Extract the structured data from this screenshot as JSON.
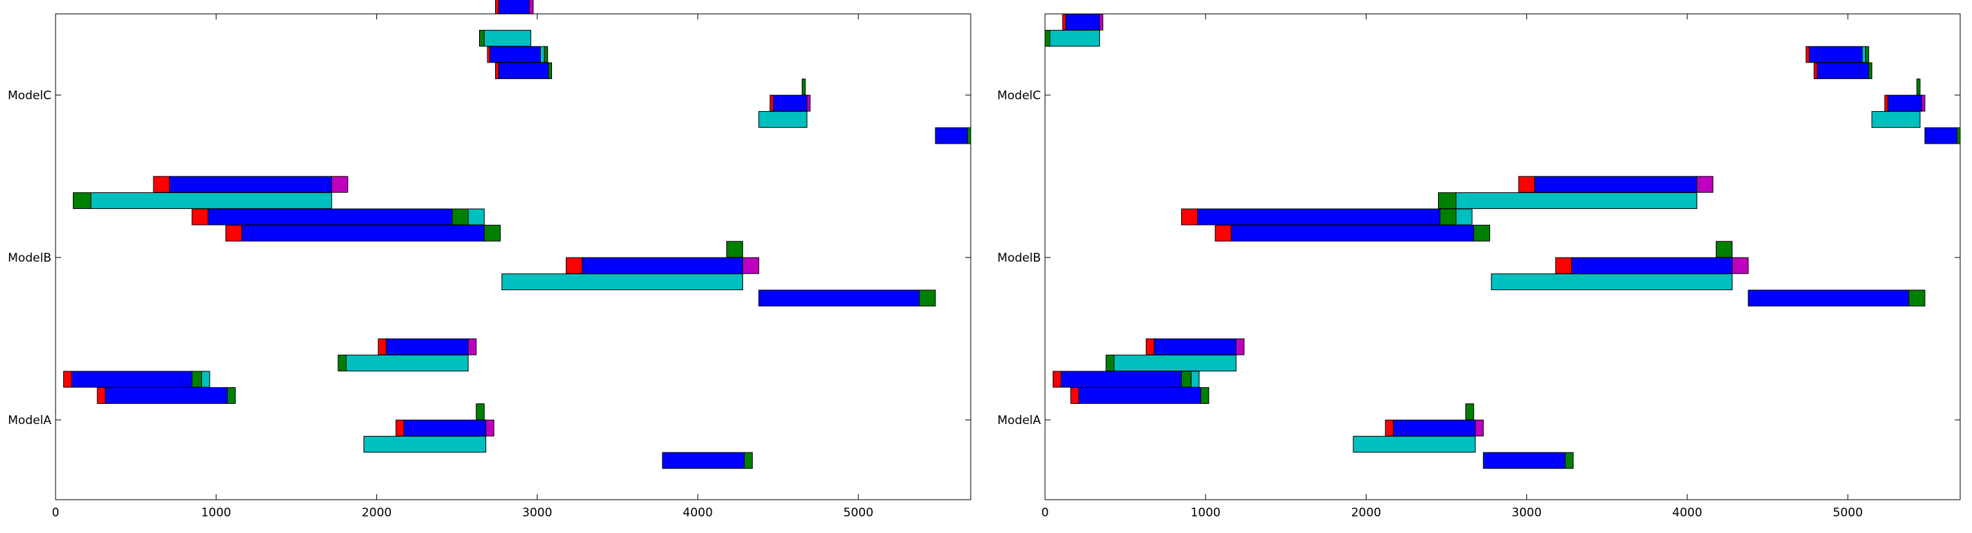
{
  "colors": {
    "red": "#ff0000",
    "blue": "#0000ff",
    "cyan": "#00bfbf",
    "green": "#008000",
    "magenta": "#bf00bf"
  },
  "chart_data": [
    {
      "type": "bar",
      "orientation": "horizontal-timeline",
      "title": "",
      "xlabel": "",
      "ylabel": "",
      "xlim": [
        0,
        5700
      ],
      "xticks": [
        "0",
        "1000",
        "2000",
        "3000",
        "4000",
        "5000"
      ],
      "categories": [
        "ModelA",
        "ModelB",
        "ModelC"
      ],
      "grid": false,
      "legend": "none",
      "bars": [
        {
          "y": 2.55,
          "start": 2740,
          "end": 2760,
          "color": "red"
        },
        {
          "y": 2.55,
          "start": 2760,
          "end": 2950,
          "color": "blue"
        },
        {
          "y": 2.55,
          "start": 2950,
          "end": 2975,
          "color": "magenta"
        },
        {
          "y": 2.35,
          "start": 2640,
          "end": 2670,
          "color": "green"
        },
        {
          "y": 2.35,
          "start": 2670,
          "end": 2960,
          "color": "cyan"
        },
        {
          "y": 2.25,
          "start": 2690,
          "end": 2705,
          "color": "red"
        },
        {
          "y": 2.25,
          "start": 2705,
          "end": 3020,
          "color": "blue"
        },
        {
          "y": 2.25,
          "start": 3020,
          "end": 3045,
          "color": "cyan"
        },
        {
          "y": 2.25,
          "start": 3045,
          "end": 3065,
          "color": "green"
        },
        {
          "y": 2.15,
          "start": 2740,
          "end": 2760,
          "color": "red"
        },
        {
          "y": 2.15,
          "start": 2760,
          "end": 3070,
          "color": "blue"
        },
        {
          "y": 2.15,
          "start": 3070,
          "end": 3090,
          "color": "green"
        },
        {
          "y": 2.05,
          "start": 4650,
          "end": 4670,
          "color": "green"
        },
        {
          "y": 1.95,
          "start": 4450,
          "end": 4470,
          "color": "red"
        },
        {
          "y": 1.95,
          "start": 4470,
          "end": 4680,
          "color": "blue"
        },
        {
          "y": 1.95,
          "start": 4680,
          "end": 4700,
          "color": "magenta"
        },
        {
          "y": 1.85,
          "start": 4380,
          "end": 4680,
          "color": "cyan"
        },
        {
          "y": 1.75,
          "start": 5480,
          "end": 5680,
          "color": "blue"
        },
        {
          "y": 1.75,
          "start": 5680,
          "end": 5700,
          "color": "green"
        },
        {
          "y": 1.45,
          "start": 610,
          "end": 710,
          "color": "red"
        },
        {
          "y": 1.45,
          "start": 710,
          "end": 1720,
          "color": "blue"
        },
        {
          "y": 1.45,
          "start": 1720,
          "end": 1820,
          "color": "magenta"
        },
        {
          "y": 1.35,
          "start": 110,
          "end": 220,
          "color": "green"
        },
        {
          "y": 1.35,
          "start": 220,
          "end": 1720,
          "color": "cyan"
        },
        {
          "y": 1.25,
          "start": 850,
          "end": 950,
          "color": "red"
        },
        {
          "y": 1.25,
          "start": 950,
          "end": 2470,
          "color": "blue"
        },
        {
          "y": 1.25,
          "start": 2470,
          "end": 2570,
          "color": "green"
        },
        {
          "y": 1.25,
          "start": 2570,
          "end": 2670,
          "color": "cyan"
        },
        {
          "y": 1.15,
          "start": 1060,
          "end": 1160,
          "color": "red"
        },
        {
          "y": 1.15,
          "start": 1160,
          "end": 2670,
          "color": "blue"
        },
        {
          "y": 1.15,
          "start": 2670,
          "end": 2770,
          "color": "green"
        },
        {
          "y": 1.05,
          "start": 4180,
          "end": 4280,
          "color": "green"
        },
        {
          "y": 0.95,
          "start": 3180,
          "end": 3280,
          "color": "red"
        },
        {
          "y": 0.95,
          "start": 3280,
          "end": 4280,
          "color": "blue"
        },
        {
          "y": 0.95,
          "start": 4280,
          "end": 4380,
          "color": "magenta"
        },
        {
          "y": 0.85,
          "start": 2780,
          "end": 4280,
          "color": "cyan"
        },
        {
          "y": 0.75,
          "start": 4380,
          "end": 5380,
          "color": "blue"
        },
        {
          "y": 0.75,
          "start": 5380,
          "end": 5480,
          "color": "green"
        },
        {
          "y": 0.45,
          "start": 2010,
          "end": 2060,
          "color": "red"
        },
        {
          "y": 0.45,
          "start": 2060,
          "end": 2570,
          "color": "blue"
        },
        {
          "y": 0.45,
          "start": 2570,
          "end": 2620,
          "color": "magenta"
        },
        {
          "y": 0.35,
          "start": 1760,
          "end": 1810,
          "color": "green"
        },
        {
          "y": 0.35,
          "start": 1810,
          "end": 2570,
          "color": "cyan"
        },
        {
          "y": 0.25,
          "start": 50,
          "end": 100,
          "color": "red"
        },
        {
          "y": 0.25,
          "start": 100,
          "end": 850,
          "color": "blue"
        },
        {
          "y": 0.25,
          "start": 850,
          "end": 910,
          "color": "green"
        },
        {
          "y": 0.25,
          "start": 910,
          "end": 960,
          "color": "cyan"
        },
        {
          "y": 0.15,
          "start": 260,
          "end": 310,
          "color": "red"
        },
        {
          "y": 0.15,
          "start": 310,
          "end": 1070,
          "color": "blue"
        },
        {
          "y": 0.15,
          "start": 1070,
          "end": 1120,
          "color": "green"
        },
        {
          "y": 0.05,
          "start": 2620,
          "end": 2670,
          "color": "green"
        },
        {
          "y": -0.05,
          "start": 2120,
          "end": 2170,
          "color": "red"
        },
        {
          "y": -0.05,
          "start": 2170,
          "end": 2680,
          "color": "blue"
        },
        {
          "y": -0.05,
          "start": 2680,
          "end": 2730,
          "color": "magenta"
        },
        {
          "y": -0.15,
          "start": 1920,
          "end": 2680,
          "color": "cyan"
        },
        {
          "y": -0.25,
          "start": 3780,
          "end": 4290,
          "color": "blue"
        },
        {
          "y": -0.25,
          "start": 4290,
          "end": 4340,
          "color": "green"
        }
      ]
    },
    {
      "type": "bar",
      "orientation": "horizontal-timeline",
      "title": "",
      "xlabel": "",
      "ylabel": "",
      "xlim": [
        0,
        5700
      ],
      "xticks": [
        "0",
        "1000",
        "2000",
        "3000",
        "4000",
        "5000"
      ],
      "categories": [
        "ModelA",
        "ModelB",
        "ModelC"
      ],
      "grid": false,
      "legend": "none",
      "bars": [
        {
          "y": 2.45,
          "start": 110,
          "end": 130,
          "color": "red"
        },
        {
          "y": 2.45,
          "start": 130,
          "end": 340,
          "color": "blue"
        },
        {
          "y": 2.45,
          "start": 340,
          "end": 360,
          "color": "magenta"
        },
        {
          "y": 2.35,
          "start": 0,
          "end": 30,
          "color": "green"
        },
        {
          "y": 2.35,
          "start": 30,
          "end": 340,
          "color": "cyan"
        },
        {
          "y": 2.25,
          "start": 4740,
          "end": 4760,
          "color": "red"
        },
        {
          "y": 2.25,
          "start": 4760,
          "end": 5090,
          "color": "blue"
        },
        {
          "y": 2.25,
          "start": 5090,
          "end": 5110,
          "color": "cyan"
        },
        {
          "y": 2.25,
          "start": 5110,
          "end": 5130,
          "color": "green"
        },
        {
          "y": 2.15,
          "start": 4790,
          "end": 4810,
          "color": "red"
        },
        {
          "y": 2.15,
          "start": 4810,
          "end": 5130,
          "color": "blue"
        },
        {
          "y": 2.15,
          "start": 5130,
          "end": 5150,
          "color": "green"
        },
        {
          "y": 2.05,
          "start": 5430,
          "end": 5450,
          "color": "green"
        },
        {
          "y": 1.95,
          "start": 5230,
          "end": 5250,
          "color": "red"
        },
        {
          "y": 1.95,
          "start": 5250,
          "end": 5460,
          "color": "blue"
        },
        {
          "y": 1.95,
          "start": 5460,
          "end": 5480,
          "color": "magenta"
        },
        {
          "y": 1.85,
          "start": 5150,
          "end": 5450,
          "color": "cyan"
        },
        {
          "y": 1.75,
          "start": 5480,
          "end": 5680,
          "color": "blue"
        },
        {
          "y": 1.75,
          "start": 5680,
          "end": 5700,
          "color": "green"
        },
        {
          "y": 1.45,
          "start": 2950,
          "end": 3050,
          "color": "red"
        },
        {
          "y": 1.45,
          "start": 3050,
          "end": 4060,
          "color": "blue"
        },
        {
          "y": 1.45,
          "start": 4060,
          "end": 4160,
          "color": "magenta"
        },
        {
          "y": 1.35,
          "start": 2450,
          "end": 2560,
          "color": "green"
        },
        {
          "y": 1.35,
          "start": 2560,
          "end": 4060,
          "color": "cyan"
        },
        {
          "y": 1.25,
          "start": 850,
          "end": 950,
          "color": "red"
        },
        {
          "y": 1.25,
          "start": 950,
          "end": 2460,
          "color": "blue"
        },
        {
          "y": 1.25,
          "start": 2460,
          "end": 2560,
          "color": "green"
        },
        {
          "y": 1.25,
          "start": 2560,
          "end": 2660,
          "color": "cyan"
        },
        {
          "y": 1.15,
          "start": 1060,
          "end": 1160,
          "color": "red"
        },
        {
          "y": 1.15,
          "start": 1160,
          "end": 2670,
          "color": "blue"
        },
        {
          "y": 1.15,
          "start": 2670,
          "end": 2770,
          "color": "green"
        },
        {
          "y": 1.05,
          "start": 4180,
          "end": 4280,
          "color": "green"
        },
        {
          "y": 0.95,
          "start": 3180,
          "end": 3280,
          "color": "red"
        },
        {
          "y": 0.95,
          "start": 3280,
          "end": 4280,
          "color": "blue"
        },
        {
          "y": 0.95,
          "start": 4280,
          "end": 4380,
          "color": "magenta"
        },
        {
          "y": 0.85,
          "start": 2780,
          "end": 4280,
          "color": "cyan"
        },
        {
          "y": 0.75,
          "start": 4380,
          "end": 5380,
          "color": "blue"
        },
        {
          "y": 0.75,
          "start": 5380,
          "end": 5480,
          "color": "green"
        },
        {
          "y": 0.45,
          "start": 630,
          "end": 680,
          "color": "red"
        },
        {
          "y": 0.45,
          "start": 680,
          "end": 1190,
          "color": "blue"
        },
        {
          "y": 0.45,
          "start": 1190,
          "end": 1240,
          "color": "magenta"
        },
        {
          "y": 0.35,
          "start": 380,
          "end": 430,
          "color": "green"
        },
        {
          "y": 0.35,
          "start": 430,
          "end": 1190,
          "color": "cyan"
        },
        {
          "y": 0.25,
          "start": 50,
          "end": 100,
          "color": "red"
        },
        {
          "y": 0.25,
          "start": 100,
          "end": 850,
          "color": "blue"
        },
        {
          "y": 0.25,
          "start": 850,
          "end": 910,
          "color": "green"
        },
        {
          "y": 0.25,
          "start": 910,
          "end": 960,
          "color": "cyan"
        },
        {
          "y": 0.15,
          "start": 160,
          "end": 210,
          "color": "red"
        },
        {
          "y": 0.15,
          "start": 210,
          "end": 970,
          "color": "blue"
        },
        {
          "y": 0.15,
          "start": 970,
          "end": 1020,
          "color": "green"
        },
        {
          "y": 0.05,
          "start": 2620,
          "end": 2670,
          "color": "green"
        },
        {
          "y": -0.05,
          "start": 2120,
          "end": 2170,
          "color": "red"
        },
        {
          "y": -0.05,
          "start": 2170,
          "end": 2680,
          "color": "blue"
        },
        {
          "y": -0.05,
          "start": 2680,
          "end": 2730,
          "color": "magenta"
        },
        {
          "y": -0.15,
          "start": 1920,
          "end": 2680,
          "color": "cyan"
        },
        {
          "y": -0.25,
          "start": 2730,
          "end": 3240,
          "color": "blue"
        },
        {
          "y": -0.25,
          "start": 3240,
          "end": 3290,
          "color": "green"
        }
      ]
    }
  ]
}
